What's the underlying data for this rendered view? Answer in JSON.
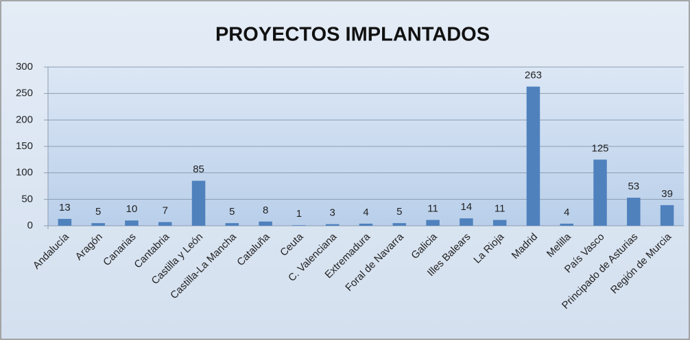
{
  "chart_data": {
    "type": "bar",
    "title": "PROYECTOS IMPLANTADOS",
    "categories": [
      "Andalucía",
      "Aragón",
      "Canarias",
      "Cantabria",
      "Castilla y León",
      "Castilla-La Mancha",
      "Cataluña",
      "Ceuta",
      "C. Valenciana",
      "Extremadura",
      "Foral de Navarra",
      "Galicia",
      "Illes Balears",
      "La Rioja",
      "Madrid",
      "Melilla",
      "País Vasco",
      "Principado de Asturias",
      "Región de Murcia"
    ],
    "values": [
      13,
      5,
      10,
      7,
      85,
      5,
      8,
      1,
      3,
      4,
      5,
      11,
      14,
      11,
      263,
      4,
      125,
      53,
      39
    ],
    "color": "#4f81bd",
    "ylim": [
      0,
      300
    ],
    "yticks": [
      0,
      50,
      100,
      150,
      200,
      250,
      300
    ],
    "grid": true
  }
}
